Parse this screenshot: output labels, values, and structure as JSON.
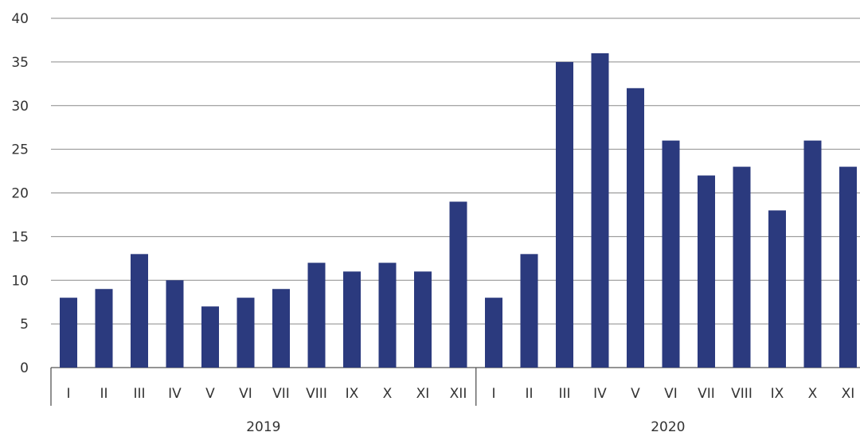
{
  "chart_data": {
    "type": "bar",
    "title": "",
    "xlabel": "",
    "ylabel": "",
    "ylim": [
      0,
      40
    ],
    "yticks": [
      0,
      5,
      10,
      15,
      20,
      25,
      30,
      35,
      40
    ],
    "grid": true,
    "bar_color": "#2B3A7E",
    "groups": [
      {
        "label": "2019",
        "categories": [
          "I",
          "II",
          "III",
          "IV",
          "V",
          "VI",
          "VII",
          "VIII",
          "IX",
          "X",
          "XI",
          "XII"
        ],
        "values": [
          8,
          9,
          13,
          10,
          7,
          8,
          9,
          12,
          11,
          12,
          11,
          19
        ]
      },
      {
        "label": "2020",
        "categories": [
          "I",
          "II",
          "III",
          "IV",
          "V",
          "VI",
          "VII",
          "VIII",
          "IX",
          "X",
          "XI"
        ],
        "values": [
          8,
          13,
          35,
          36,
          32,
          26,
          22,
          23,
          18,
          26,
          23
        ]
      }
    ]
  }
}
